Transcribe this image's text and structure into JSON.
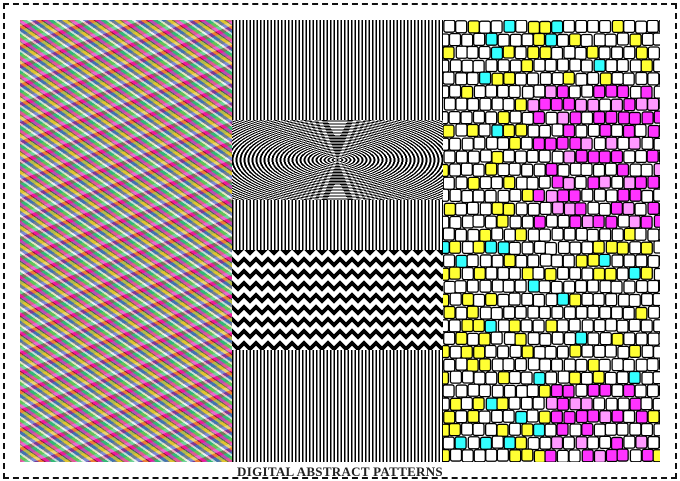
{
  "caption": "DIGITAL ABSTRACT PATTERNS",
  "panels": [
    {
      "name": "psychedelic-liquid-pattern"
    },
    {
      "name": "black-white-op-art-pattern"
    },
    {
      "name": "stained-glass-mosaic-pattern"
    }
  ],
  "colors": {
    "mosaic": [
      "#ffffff",
      "#ffff33",
      "#ff33ff",
      "#33ffff",
      "#ff99ff",
      "#ff3333"
    ]
  }
}
